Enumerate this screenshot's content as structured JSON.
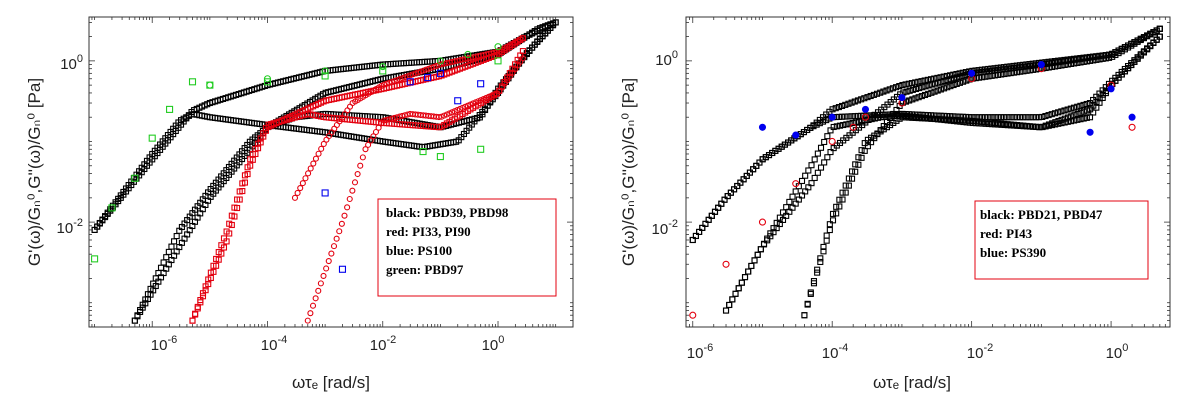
{
  "panels": [
    {
      "ylabel": "G'(ω)/Gₙ⁰,G''(ω)/Gₙ⁰ [Pa]",
      "xlabel": "ωτₑ [rad/s]",
      "xticks": [
        "10-6",
        "10-4",
        "10-2",
        "100"
      ],
      "yticks": [
        "10-2",
        "100"
      ],
      "legend": [
        "black:  PBD39, PBD98",
        "red:  PI33, PI90",
        "blue:  PS100",
        "green: PBD97"
      ]
    },
    {
      "ylabel": "G'(ω)/Gₙ⁰,G''(ω)/Gₙ⁰ [Pa]",
      "xlabel": "ωτₑ [rad/s]",
      "xticks": [
        "10-6",
        "10-4",
        "10-2",
        "100"
      ],
      "yticks": [
        "10-2",
        "100"
      ],
      "legend": [
        "black:  PBD21, PBD47",
        "red:  PI43",
        "blue:  PS390"
      ]
    }
  ],
  "colors": {
    "black": "#000000",
    "red": "#e3000f",
    "blue": "#0000ee",
    "green": "#22cc22",
    "legend_border": "#e3000f"
  },
  "chart_data": [
    {
      "type": "scatter",
      "xscale": "log",
      "yscale": "log",
      "xlim": [
        8e-08,
        20
      ],
      "ylim": [
        0.0005,
        3.5
      ],
      "grid": false,
      "legend_position": "bottom-right",
      "series": [
        {
          "name": "black",
          "marker": "square",
          "color": "#000000",
          "curves": [
            {
              "x": [
                1e-07,
                1e-06,
                5e-06,
                1e-05,
                0.0001,
                0.001,
                0.01,
                0.1,
                1,
                3,
                10
              ],
              "y": [
                0.008,
                0.06,
                0.24,
                0.3,
                0.5,
                0.75,
                0.9,
                1.0,
                1.3,
                2.0,
                3.0
              ]
            },
            {
              "x": [
                1e-07,
                1e-06,
                3e-06,
                5e-06,
                1e-05,
                0.0001,
                0.001,
                0.01,
                0.05,
                0.2,
                1,
                3,
                10
              ],
              "y": [
                0.008,
                0.07,
                0.18,
                0.22,
                0.2,
                0.16,
                0.13,
                0.1,
                0.085,
                0.1,
                0.4,
                1.2,
                3.0
              ]
            },
            {
              "x": [
                5e-07,
                3e-06,
                1e-05,
                5e-05,
                0.0001,
                0.001,
                0.01,
                0.1,
                1,
                5,
                10
              ],
              "y": [
                0.0006,
                0.005,
                0.02,
                0.08,
                0.15,
                0.4,
                0.6,
                0.8,
                1.2,
                2.5,
                3.0
              ]
            },
            {
              "x": [
                5e-07,
                3e-06,
                1e-05,
                5e-05,
                0.0001,
                0.0003,
                0.001,
                0.01,
                0.1,
                0.5,
                1,
                5,
                10
              ],
              "y": [
                0.0006,
                0.008,
                0.025,
                0.1,
                0.15,
                0.2,
                0.22,
                0.2,
                0.15,
                0.2,
                0.45,
                1.8,
                3.0
              ]
            }
          ]
        },
        {
          "name": "red",
          "marker": "square",
          "color": "#e3000f",
          "curves": [
            {
              "x": [
                5e-06,
                2e-05,
                5e-05,
                0.0001,
                0.001,
                0.01,
                0.1,
                1,
                3
              ],
              "y": [
                0.0006,
                0.006,
                0.05,
                0.15,
                0.32,
                0.45,
                0.65,
                1.2,
                2.0
              ]
            },
            {
              "x": [
                5e-06,
                2e-05,
                5e-05,
                0.0001,
                0.0005,
                0.001,
                0.01,
                0.1,
                1,
                3
              ],
              "y": [
                0.0006,
                0.008,
                0.06,
                0.16,
                0.22,
                0.2,
                0.17,
                0.15,
                0.4,
                1.5
              ]
            }
          ]
        },
        {
          "name": "red",
          "marker": "circle",
          "color": "#e3000f",
          "curves": [
            {
              "x": [
                0.0003,
                0.001,
                0.003,
                0.01,
                0.1,
                1,
                3
              ],
              "y": [
                0.02,
                0.1,
                0.3,
                0.5,
                0.9,
                1.3,
                2.0
              ]
            },
            {
              "x": [
                0.0005,
                0.002,
                0.005,
                0.01,
                0.03,
                0.1,
                1,
                3
              ],
              "y": [
                0.0006,
                0.01,
                0.08,
                0.18,
                0.22,
                0.2,
                0.4,
                1.2
              ]
            }
          ]
        },
        {
          "name": "blue",
          "marker": "square",
          "color": "#0000ee",
          "points": {
            "x": [
              0.001,
              0.002,
              0.03,
              0.06,
              0.1,
              0.2,
              0.5
            ],
            "y": [
              0.023,
              0.0026,
              0.55,
              0.62,
              0.7,
              0.32,
              0.52
            ]
          }
        },
        {
          "name": "green",
          "marker": "square",
          "color": "#22cc22",
          "points": {
            "x": [
              1e-07,
              2e-07,
              5e-07,
              1e-06,
              2e-06,
              5e-06,
              1e-05,
              0.0001,
              0.001,
              0.01,
              0.05,
              0.1,
              0.5,
              1
            ],
            "y": [
              0.0035,
              0.015,
              0.035,
              0.11,
              0.25,
              0.55,
              0.5,
              0.55,
              0.65,
              0.75,
              0.075,
              0.065,
              0.08,
              1.0
            ]
          }
        },
        {
          "name": "green",
          "marker": "circle",
          "color": "#22cc22",
          "points": {
            "x": [
              1e-05,
              0.0001,
              0.001,
              0.01,
              0.1,
              0.3,
              1
            ],
            "y": [
              0.5,
              0.6,
              0.75,
              0.85,
              1.0,
              1.2,
              1.5
            ]
          }
        }
      ]
    },
    {
      "type": "scatter",
      "xscale": "log",
      "yscale": "log",
      "xlim": [
        8e-07,
        7
      ],
      "ylim": [
        0.0005,
        3.5
      ],
      "grid": false,
      "legend_position": "bottom-right",
      "series": [
        {
          "name": "black",
          "marker": "square",
          "color": "#000000",
          "curves": [
            {
              "x": [
                1e-06,
                3e-06,
                1e-05,
                5e-05,
                0.0001,
                0.001,
                0.01,
                0.1,
                1,
                5
              ],
              "y": [
                0.006,
                0.02,
                0.06,
                0.15,
                0.25,
                0.5,
                0.75,
                0.95,
                1.2,
                2.5
              ]
            },
            {
              "x": [
                1e-06,
                3e-06,
                1e-05,
                5e-05,
                0.0001,
                0.001,
                0.01,
                0.1,
                0.5,
                1,
                5
              ],
              "y": [
                0.006,
                0.02,
                0.06,
                0.15,
                0.2,
                0.22,
                0.2,
                0.2,
                0.3,
                0.55,
                2.0
              ]
            },
            {
              "x": [
                3e-06,
                1e-05,
                5e-05,
                0.0001,
                0.001,
                0.01,
                0.1,
                1,
                5
              ],
              "y": [
                0.0008,
                0.005,
                0.03,
                0.08,
                0.4,
                0.7,
                0.9,
                1.2,
                2.5
              ]
            },
            {
              "x": [
                3e-06,
                1e-05,
                5e-05,
                0.0001,
                0.0005,
                0.001,
                0.01,
                0.1,
                0.5,
                1,
                5
              ],
              "y": [
                0.0008,
                0.005,
                0.05,
                0.15,
                0.2,
                0.21,
                0.17,
                0.15,
                0.25,
                0.5,
                2.0
              ]
            },
            {
              "x": [
                4e-05,
                0.0001,
                0.0003,
                0.001,
                0.01,
                0.1,
                1,
                5
              ],
              "y": [
                0.0007,
                0.01,
                0.08,
                0.3,
                0.6,
                0.8,
                1.1,
                2.5
              ]
            },
            {
              "x": [
                4e-05,
                0.0001,
                0.0003,
                0.001,
                0.01,
                0.1,
                0.5,
                1,
                5
              ],
              "y": [
                0.0007,
                0.012,
                0.1,
                0.2,
                0.18,
                0.15,
                0.2,
                0.5,
                2.0
              ]
            }
          ]
        },
        {
          "name": "red",
          "marker": "circle",
          "color": "#e3000f",
          "points": {
            "x": [
              1e-06,
              3e-06,
              1e-05,
              3e-05,
              0.0001,
              0.0002,
              0.0003,
              0.001,
              0.01,
              0.1,
              1,
              2
            ],
            "y": [
              0.0007,
              0.003,
              0.01,
              0.03,
              0.1,
              0.15,
              0.2,
              0.3,
              0.6,
              0.8,
              0.5,
              0.15
            ]
          }
        },
        {
          "name": "blue",
          "marker": "circle",
          "color": "#0000ee",
          "points": {
            "x": [
              1e-05,
              3e-05,
              0.0001,
              0.0003,
              0.001,
              0.01,
              0.1,
              0.5,
              1,
              2
            ],
            "y": [
              0.15,
              0.12,
              0.2,
              0.25,
              0.35,
              0.7,
              0.9,
              0.13,
              0.45,
              0.2
            ]
          }
        }
      ]
    }
  ]
}
